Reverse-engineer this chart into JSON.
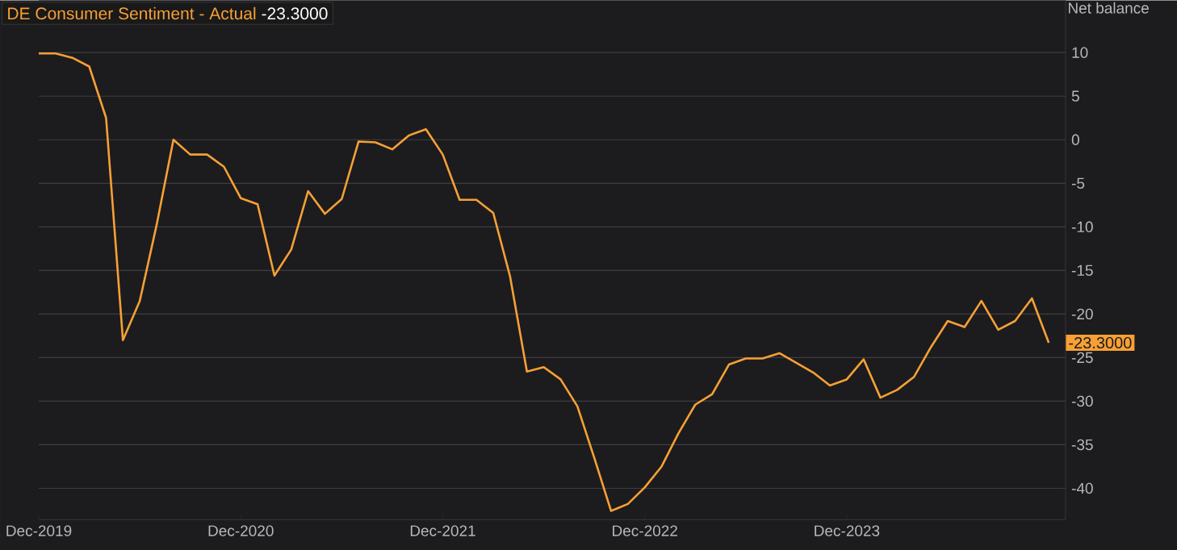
{
  "chart_data": {
    "type": "line",
    "title": "DE Consumer Sentiment - Actual",
    "ylabel": "Net balance",
    "annotations": [
      "-23.3000",
      {
        "text": "-23.3000",
        "x": "2024-12",
        "y": -23.3
      }
    ],
    "x": [
      "2019-12",
      "2020-01",
      "2020-02",
      "2020-03",
      "2020-04",
      "2020-05",
      "2020-06",
      "2020-07",
      "2020-08",
      "2020-09",
      "2020-10",
      "2020-11",
      "2020-12",
      "2021-01",
      "2021-02",
      "2021-03",
      "2021-04",
      "2021-05",
      "2021-06",
      "2021-07",
      "2021-08",
      "2021-09",
      "2021-10",
      "2021-11",
      "2021-12",
      "2022-01",
      "2022-02",
      "2022-03",
      "2022-04",
      "2022-05",
      "2022-06",
      "2022-07",
      "2022-08",
      "2022-09",
      "2022-10",
      "2022-11",
      "2022-12",
      "2023-01",
      "2023-02",
      "2023-03",
      "2023-04",
      "2023-05",
      "2023-06",
      "2023-07",
      "2023-08",
      "2023-09",
      "2023-10",
      "2023-11",
      "2023-12",
      "2024-01",
      "2024-02",
      "2024-03",
      "2024-04",
      "2024-05",
      "2024-06",
      "2024-07",
      "2024-08",
      "2024-09",
      "2024-10",
      "2024-11",
      "2024-12"
    ],
    "series": [
      {
        "color": "#f7a035",
        "values": [
          9.9,
          9.9,
          9.4,
          8.4,
          2.5,
          -23.0,
          -18.5,
          -9.8,
          0.0,
          -1.7,
          -1.7,
          -3.1,
          -6.7,
          -7.4,
          -15.6,
          -12.6,
          -5.9,
          -8.5,
          -6.8,
          -0.2,
          -0.3,
          -1.1,
          0.5,
          1.2,
          -1.7,
          -6.9,
          -6.9,
          -8.4,
          -15.7,
          -26.6,
          -26.1,
          -27.5,
          -30.6,
          -36.5,
          -42.6,
          -41.8,
          -39.9,
          -37.5,
          -33.7,
          -30.4,
          -29.2,
          -25.8,
          -25.1,
          -25.1,
          -24.5,
          -25.6,
          -26.7,
          -28.2,
          -27.5,
          -25.2,
          -29.6,
          -28.7,
          -27.2,
          -23.8,
          -20.8,
          -21.5,
          -18.5,
          -21.8,
          -20.8,
          -18.2,
          -23.3
        ]
      }
    ],
    "xlim": [
      "2019-12",
      "2025-01"
    ],
    "ylim": [
      -43.6,
      16
    ],
    "xticks": [
      {
        "value": "2019-12",
        "label": "Dec-2019"
      },
      {
        "value": "2020-12",
        "label": "Dec-2020"
      },
      {
        "value": "2021-12",
        "label": "Dec-2021"
      },
      {
        "value": "2022-12",
        "label": "Dec-2022"
      },
      {
        "value": "2023-12",
        "label": "Dec-2023"
      }
    ],
    "yticks": [
      -40,
      -35,
      -30,
      -25,
      -20,
      -15,
      -10,
      -5,
      0,
      5,
      10
    ],
    "grid": "y",
    "marker": "none",
    "line_style": "solid"
  }
}
